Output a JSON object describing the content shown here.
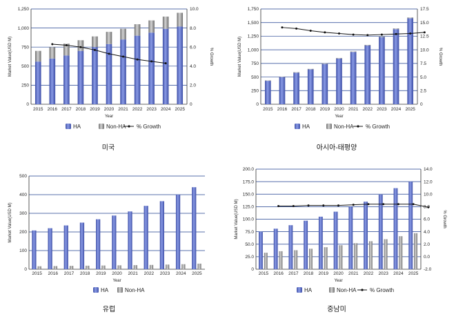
{
  "colors": {
    "ha_bar": "#5b6fc8",
    "nonha_bar": "#9a9a9a",
    "growth_line": "#111111",
    "grid": "#1f3f8f"
  },
  "chart_data": [
    {
      "type": "bar",
      "title": "미국",
      "xlabel": "Year",
      "ylabel": "Market Value(USD M)",
      "y2label": "% Growth",
      "stacked": true,
      "categories": [
        "2015",
        "2016",
        "2017",
        "2018",
        "2019",
        "2020",
        "2021",
        "2022",
        "2023",
        "2024",
        "2025"
      ],
      "ylim": [
        0,
        1250
      ],
      "yticks": [
        0,
        250,
        500,
        750,
        1000,
        1250
      ],
      "ytick_labels": [
        "0",
        "250",
        "500",
        "750",
        "1,000",
        "1,250"
      ],
      "y2lim": [
        0,
        10
      ],
      "y2ticks": [
        0,
        2,
        4,
        6,
        8,
        10
      ],
      "y2tick_labels": [
        "0",
        "2.0",
        "4.0",
        "6.0",
        "8.0",
        "10.0"
      ],
      "legend": [
        "HA",
        "Non-HA",
        "% Growth"
      ],
      "series": [
        {
          "name": "HA",
          "values": [
            560,
            600,
            640,
            700,
            750,
            790,
            850,
            900,
            940,
            990,
            1020
          ]
        },
        {
          "name": "Non-HA",
          "values": [
            140,
            150,
            155,
            140,
            140,
            160,
            140,
            150,
            160,
            160,
            180
          ]
        }
      ],
      "growth": {
        "name": "% Growth",
        "x_start": 1,
        "values": [
          6.3,
          6.2,
          6.0,
          5.7,
          5.3,
          5.0,
          4.7,
          4.5,
          4.3
        ]
      }
    },
    {
      "type": "bar",
      "title": "아시아-태평양",
      "xlabel": "Year",
      "ylabel": "Market Value(USD M)",
      "y2label": "% Growth",
      "stacked": true,
      "categories": [
        "2015",
        "2016",
        "2017",
        "2018",
        "2019",
        "2020",
        "2021",
        "2022",
        "2023",
        "2024",
        "2025"
      ],
      "ylim": [
        0,
        1750
      ],
      "yticks": [
        0,
        250,
        500,
        750,
        1000,
        1250,
        1500,
        1750
      ],
      "ytick_labels": [
        "0",
        "250",
        "500",
        "750",
        "1,000",
        "1,250",
        "1,500",
        "1,750"
      ],
      "y2lim": [
        0,
        17.5
      ],
      "y2ticks": [
        0,
        2.5,
        5,
        7.5,
        10,
        12.5,
        15,
        17.5
      ],
      "y2tick_labels": [
        "0",
        "2.5",
        "5.0",
        "7.5",
        "10.0",
        "12.5",
        "15.0",
        "17.5"
      ],
      "legend": [
        "HA",
        "Non-HA",
        "% Growth"
      ],
      "series": [
        {
          "name": "HA",
          "values": [
            430,
            500,
            580,
            640,
            740,
            840,
            960,
            1080,
            1230,
            1380,
            1580
          ]
        },
        {
          "name": "Non-HA",
          "values": [
            8,
            8,
            9,
            9,
            10,
            10,
            10,
            11,
            12,
            12,
            13
          ]
        }
      ],
      "growth": {
        "name": "% Growth",
        "x_start": 1,
        "values": [
          14.1,
          13.9,
          13.5,
          13.2,
          13.0,
          12.8,
          12.7,
          12.8,
          12.9,
          13.0,
          13.2
        ]
      }
    },
    {
      "type": "bar",
      "title": "유럽",
      "xlabel": "Year",
      "ylabel": "Market Value(USD M)",
      "categories": [
        "2015",
        "2016",
        "2017",
        "2018",
        "2019",
        "2020",
        "2021",
        "2022",
        "2023",
        "2024",
        "2025"
      ],
      "ylim": [
        0,
        500
      ],
      "yticks": [
        0,
        100,
        200,
        300,
        400,
        500
      ],
      "ytick_labels": [
        "0",
        "100",
        "200",
        "300",
        "400",
        "500"
      ],
      "legend": [
        "HA",
        "Non-HA"
      ],
      "series": [
        {
          "name": "HA",
          "values": [
            208,
            220,
            235,
            250,
            268,
            288,
            310,
            340,
            365,
            400,
            440
          ]
        },
        {
          "name": "Non-HA",
          "values": [
            16,
            17,
            18,
            19,
            20,
            21,
            22,
            23,
            25,
            27,
            30
          ]
        }
      ]
    },
    {
      "type": "bar",
      "title": "중남미",
      "xlabel": "Year",
      "ylabel": "Market Value(USD M)",
      "y2label": "% Growth",
      "categories": [
        "2015",
        "2016",
        "2017",
        "2018",
        "2019",
        "2020",
        "2021",
        "2022",
        "2023",
        "2024",
        "2025"
      ],
      "ylim": [
        0,
        200
      ],
      "yticks": [
        0,
        25,
        50,
        75,
        100,
        125,
        150,
        175,
        200
      ],
      "ytick_labels": [
        "0",
        "25.0",
        "50.0",
        "75.0",
        "100.0",
        "125.0",
        "150.0",
        "175.0",
        "200.0"
      ],
      "y2lim": [
        -2,
        14
      ],
      "y2ticks": [
        -2,
        0,
        2,
        4,
        6,
        8,
        10,
        12,
        14
      ],
      "y2tick_labels": [
        "-2.0",
        "0.0",
        "2.0",
        "4.0",
        "6.0",
        "8.0",
        "10.0",
        "12.0",
        "14.0"
      ],
      "legend": [
        "HA",
        "Non-HA",
        "% Growth"
      ],
      "series": [
        {
          "name": "HA",
          "values": [
            75,
            81,
            88,
            97,
            105,
            115,
            125,
            135,
            149,
            162,
            175
          ]
        },
        {
          "name": "Non-HA",
          "values": [
            33,
            36,
            38,
            41,
            44,
            48,
            52,
            56,
            60,
            66,
            72
          ]
        }
      ],
      "growth": {
        "name": "% Growth",
        "x_start": 1,
        "values": [
          8.1,
          8.1,
          8.2,
          8.2,
          8.2,
          8.3,
          8.4,
          8.4,
          8.4,
          8.4,
          7.9
        ]
      }
    }
  ]
}
